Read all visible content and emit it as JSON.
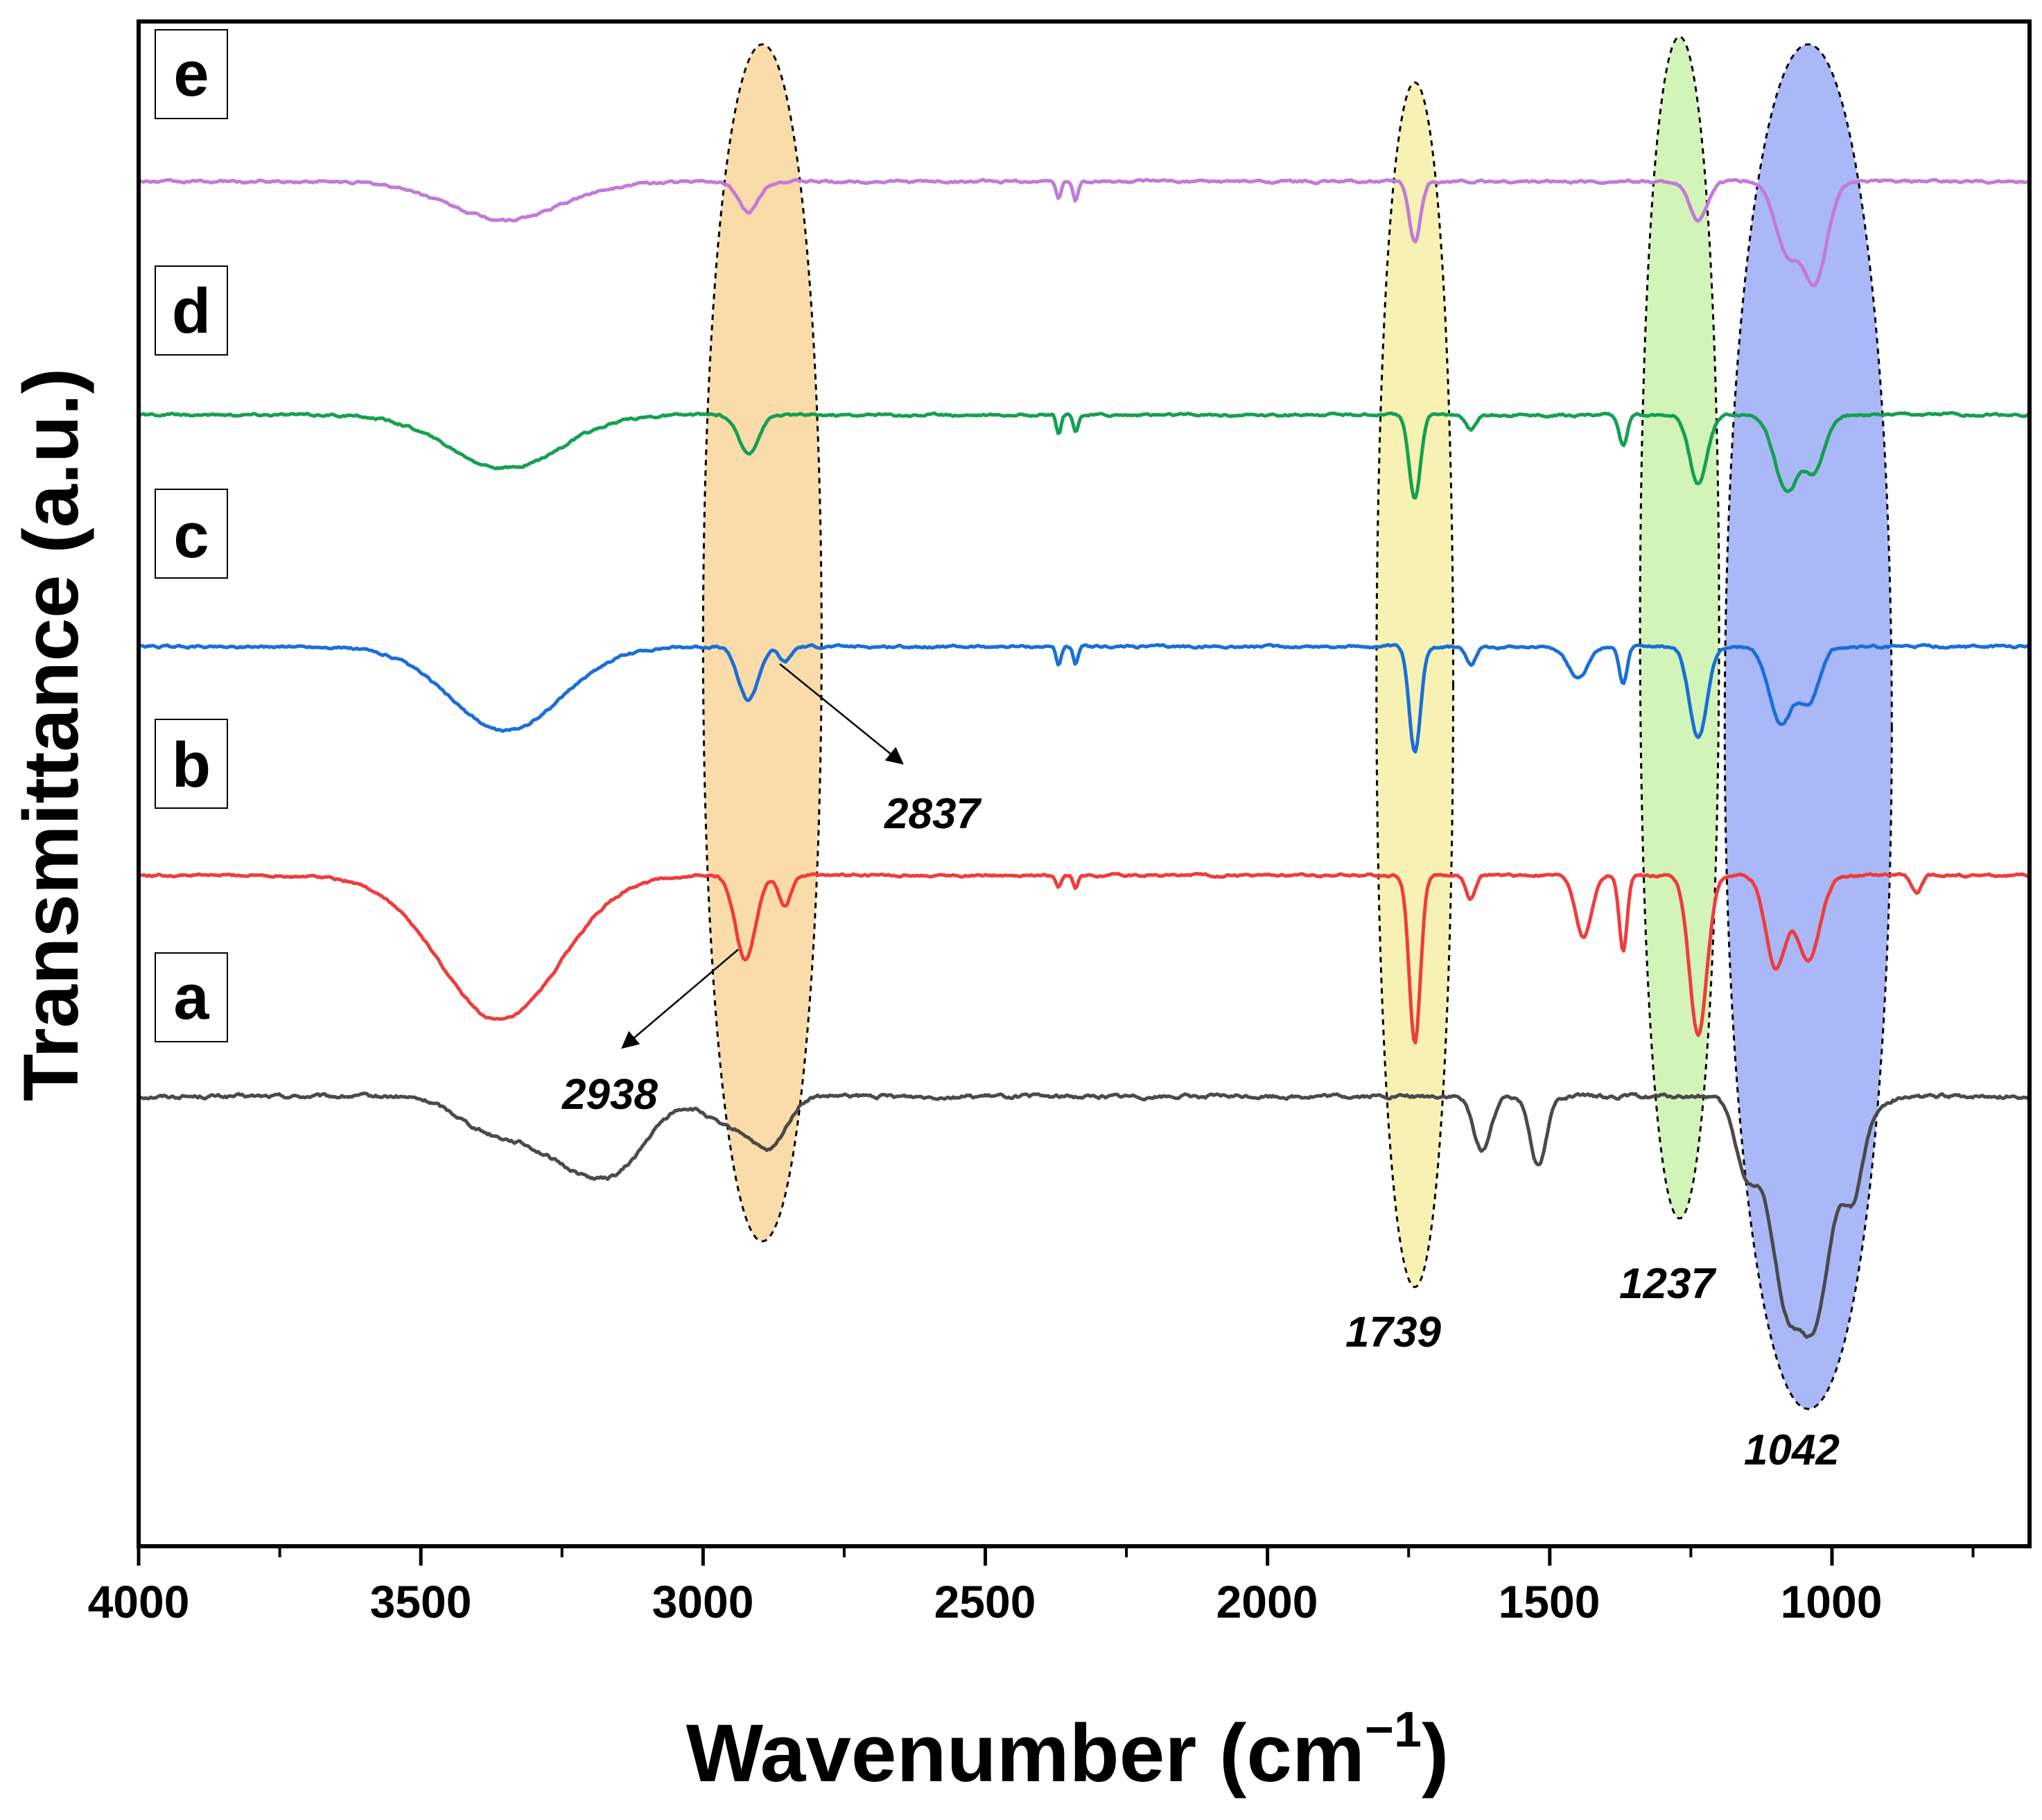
{
  "chart_data": {
    "type": "line",
    "title": "",
    "xlabel": "Wavenumber (cm",
    "xlabel_sup": "−1",
    "xlabel_close": ")",
    "ylabel": "Transmittance (a.u.)",
    "xlim": [
      4000,
      650
    ],
    "x_reversed": true,
    "ylim": [
      0,
      1
    ],
    "grid": false,
    "x_ticks": [
      4000,
      3500,
      3000,
      2500,
      2000,
      1500,
      1000
    ],
    "x_tick_labels": [
      "4000",
      "3500",
      "3000",
      "2500",
      "2000",
      "1500",
      "1000"
    ],
    "baseline_colors": {
      "a": "#4a4a4a",
      "b": "#f03c3c",
      "c": "#1a6ed8",
      "d": "#15a050",
      "e": "#c27ad8"
    },
    "series": [
      {
        "name": "a",
        "color": "#4a4a4a",
        "baseline": 0.295,
        "peaks": [
          {
            "x": 3380,
            "w": 80,
            "d": 0.02
          },
          {
            "x": 3250,
            "w": 90,
            "d": 0.035
          },
          {
            "x": 3150,
            "w": 80,
            "d": 0.04
          },
          {
            "x": 2950,
            "w": 60,
            "d": 0.02
          },
          {
            "x": 2880,
            "w": 40,
            "d": 0.03
          },
          {
            "x": 1620,
            "w": 22,
            "d": 0.035
          },
          {
            "x": 1520,
            "w": 20,
            "d": 0.045
          },
          {
            "x": 1150,
            "w": 30,
            "d": 0.05
          },
          {
            "x": 1080,
            "w": 40,
            "d": 0.13
          },
          {
            "x": 1030,
            "w": 30,
            "d": 0.08
          },
          {
            "x": 960,
            "w": 20,
            "d": 0.03
          },
          {
            "x": 1000,
            "w": 60,
            "d": 0.06
          }
        ],
        "noise": 0.003
      },
      {
        "name": "b",
        "color": "#f03c3c",
        "baseline": 0.44,
        "peaks": [
          {
            "x": 3360,
            "w": 150,
            "d": 0.095
          },
          {
            "x": 2925,
            "w": 25,
            "d": 0.055
          },
          {
            "x": 2855,
            "w": 15,
            "d": 0.02
          },
          {
            "x": 2370,
            "w": 6,
            "d": 0.008
          },
          {
            "x": 2340,
            "w": 6,
            "d": 0.008
          },
          {
            "x": 1739,
            "w": 14,
            "d": 0.11
          },
          {
            "x": 1640,
            "w": 12,
            "d": 0.015
          },
          {
            "x": 1440,
            "w": 20,
            "d": 0.04
          },
          {
            "x": 1370,
            "w": 10,
            "d": 0.05
          },
          {
            "x": 1237,
            "w": 22,
            "d": 0.105
          },
          {
            "x": 1100,
            "w": 25,
            "d": 0.06
          },
          {
            "x": 1042,
            "w": 30,
            "d": 0.055
          },
          {
            "x": 850,
            "w": 12,
            "d": 0.012
          }
        ],
        "noise": 0.002
      },
      {
        "name": "c",
        "color": "#1a6ed8",
        "baseline": 0.59,
        "peaks": [
          {
            "x": 3350,
            "w": 140,
            "d": 0.055
          },
          {
            "x": 2920,
            "w": 25,
            "d": 0.035
          },
          {
            "x": 2855,
            "w": 15,
            "d": 0.01
          },
          {
            "x": 2370,
            "w": 6,
            "d": 0.012
          },
          {
            "x": 2340,
            "w": 6,
            "d": 0.012
          },
          {
            "x": 1739,
            "w": 14,
            "d": 0.07
          },
          {
            "x": 1640,
            "w": 12,
            "d": 0.012
          },
          {
            "x": 1450,
            "w": 25,
            "d": 0.02
          },
          {
            "x": 1370,
            "w": 10,
            "d": 0.025
          },
          {
            "x": 1237,
            "w": 22,
            "d": 0.06
          },
          {
            "x": 1090,
            "w": 30,
            "d": 0.05
          },
          {
            "x": 1040,
            "w": 25,
            "d": 0.035
          }
        ],
        "noise": 0.002
      },
      {
        "name": "d",
        "color": "#15a050",
        "baseline": 0.742,
        "peaks": [
          {
            "x": 3350,
            "w": 140,
            "d": 0.035
          },
          {
            "x": 2920,
            "w": 25,
            "d": 0.025
          },
          {
            "x": 2370,
            "w": 6,
            "d": 0.012
          },
          {
            "x": 2340,
            "w": 6,
            "d": 0.012
          },
          {
            "x": 1739,
            "w": 14,
            "d": 0.055
          },
          {
            "x": 1640,
            "w": 12,
            "d": 0.01
          },
          {
            "x": 1370,
            "w": 10,
            "d": 0.02
          },
          {
            "x": 1237,
            "w": 22,
            "d": 0.045
          },
          {
            "x": 1080,
            "w": 30,
            "d": 0.05
          },
          {
            "x": 1030,
            "w": 25,
            "d": 0.035
          }
        ],
        "noise": 0.002
      },
      {
        "name": "e",
        "color": "#c27ad8",
        "baseline": 0.895,
        "peaks": [
          {
            "x": 3350,
            "w": 140,
            "d": 0.025
          },
          {
            "x": 2920,
            "w": 25,
            "d": 0.02
          },
          {
            "x": 2370,
            "w": 6,
            "d": 0.012
          },
          {
            "x": 2340,
            "w": 6,
            "d": 0.012
          },
          {
            "x": 1739,
            "w": 14,
            "d": 0.04
          },
          {
            "x": 1237,
            "w": 22,
            "d": 0.025
          },
          {
            "x": 1080,
            "w": 30,
            "d": 0.045
          },
          {
            "x": 1030,
            "w": 30,
            "d": 0.065
          }
        ],
        "noise": 0.002
      }
    ],
    "highlight_regions": [
      {
        "name": "orange",
        "center": 2895,
        "half_width": 105,
        "top": 0.985,
        "bottom": 0.2,
        "color": "#f8d08e"
      },
      {
        "name": "yellow",
        "center": 1739,
        "half_width": 68,
        "top": 0.96,
        "bottom": 0.17,
        "color": "#f4ee9a"
      },
      {
        "name": "green",
        "center": 1270,
        "half_width": 70,
        "top": 0.99,
        "bottom": 0.215,
        "color": "#c4f0a0"
      },
      {
        "name": "blue",
        "center": 1042,
        "half_width": 148,
        "top": 0.985,
        "bottom": 0.09,
        "color": "#8ea0f6"
      }
    ],
    "trace_labels": [
      "a",
      "b",
      "c",
      "d",
      "e"
    ],
    "annotations": [
      {
        "text": "2938",
        "peak_x": 2938,
        "arrow": true
      },
      {
        "text": "2837",
        "peak_x": 2837,
        "arrow": true
      },
      {
        "text": "1739",
        "peak_x": 1739,
        "arrow": false
      },
      {
        "text": "1237",
        "peak_x": 1237,
        "arrow": false
      },
      {
        "text": "1042",
        "peak_x": 1042,
        "arrow": false
      }
    ]
  }
}
